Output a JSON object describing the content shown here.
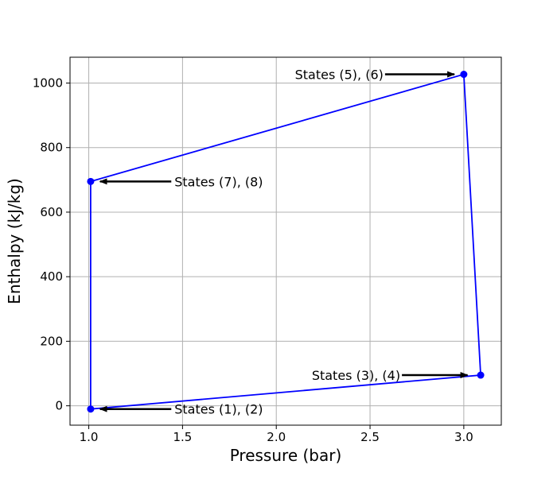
{
  "chart_data": {
    "type": "line",
    "title": "",
    "xlabel": "Pressure (bar)",
    "ylabel": "Enthalpy (kJ/kg)",
    "xlim": [
      0.9,
      3.2
    ],
    "ylim": [
      -60,
      1080
    ],
    "xticks": [
      1.0,
      1.5,
      2.0,
      2.5,
      3.0
    ],
    "xtick_labels": [
      "1.0",
      "1.5",
      "2.0",
      "2.5",
      "3.0"
    ],
    "yticks": [
      0,
      200,
      400,
      600,
      800,
      1000
    ],
    "ytick_labels": [
      "0",
      "200",
      "400",
      "600",
      "800",
      "1000"
    ],
    "grid": true,
    "legend": "none",
    "colors": {
      "line": "#0000ff",
      "marker": "#0000ff",
      "arrow": "#000000",
      "grid": "#b0b0b0"
    },
    "series": [
      {
        "x": [
          1.01,
          3.09,
          3.0,
          1.01,
          1.01
        ],
        "y": [
          -10,
          95,
          1027,
          695,
          -10
        ]
      }
    ],
    "markers": [
      {
        "x": 1.01,
        "y": -10
      },
      {
        "x": 3.09,
        "y": 95
      },
      {
        "x": 3.0,
        "y": 1027
      },
      {
        "x": 1.01,
        "y": 695
      }
    ],
    "annotations": [
      {
        "text": "States (1), (2)",
        "xy": [
          1.06,
          -10
        ],
        "xytext": [
          1.44,
          -10
        ],
        "anchor": "start"
      },
      {
        "text": "States (3), (4)",
        "xy": [
          3.02,
          95
        ],
        "xytext": [
          2.67,
          95
        ],
        "anchor": "end"
      },
      {
        "text": "States (5), (6)",
        "xy": [
          2.95,
          1027
        ],
        "xytext": [
          2.58,
          1027
        ],
        "anchor": "end"
      },
      {
        "text": "States (7), (8)",
        "xy": [
          1.06,
          695
        ],
        "xytext": [
          1.44,
          695
        ],
        "anchor": "start"
      }
    ]
  }
}
